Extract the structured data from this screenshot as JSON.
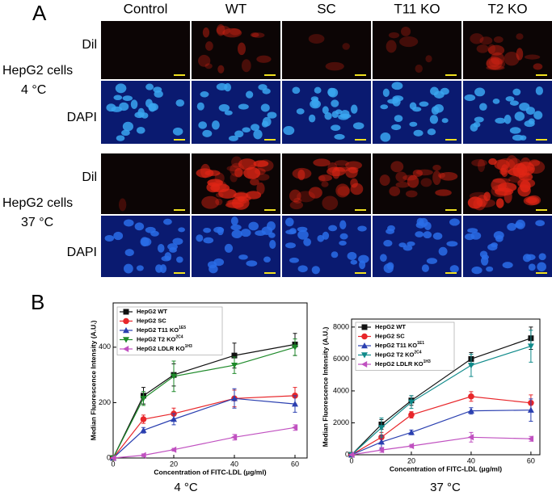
{
  "panel_a": {
    "label": "A",
    "columns": [
      "Control",
      "WT",
      "SC",
      "T11 KO",
      "T2 KO"
    ],
    "groups": [
      {
        "cell_line": "HepG2 cells",
        "temperature": "4 °C",
        "rows": [
          "Dil",
          "DAPI"
        ]
      },
      {
        "cell_line": "HepG2 cells",
        "temperature": "37 °C",
        "rows": [
          "Dil",
          "DAPI"
        ]
      }
    ]
  },
  "panel_b_label": "B",
  "chart_data": [
    {
      "type": "line",
      "caption": "4 °C",
      "x_label": "Concentration of FITC-LDL (μg/ml)",
      "y_label": "Median Fluorescence Intensity (A.U.)",
      "x": [
        0,
        10,
        20,
        40,
        60
      ],
      "xlim": [
        0,
        64
      ],
      "xticks": [
        0,
        20,
        40,
        60
      ],
      "ylim": [
        0,
        560
      ],
      "yticks": [
        0,
        200,
        400
      ],
      "series": [
        {
          "name": "HepG2 WT",
          "color": "#111111",
          "marker": "square",
          "values": [
            0,
            225,
            300,
            370,
            410
          ],
          "errors": [
            0,
            30,
            40,
            45,
            40
          ]
        },
        {
          "name": "HepG2 SC",
          "color": "#e8262a",
          "marker": "circle",
          "values": [
            0,
            140,
            160,
            215,
            225
          ],
          "errors": [
            0,
            15,
            20,
            30,
            30
          ]
        },
        {
          "name": "HepG2 T11 KO",
          "sup": "1E5",
          "color": "#2a3fb0",
          "marker": "triangle-up",
          "values": [
            0,
            100,
            140,
            215,
            195
          ],
          "errors": [
            0,
            10,
            20,
            35,
            30
          ]
        },
        {
          "name": "HepG2 T2 KO",
          "sup": "2C4",
          "color": "#1e8a2a",
          "marker": "triangle-down",
          "values": [
            0,
            215,
            295,
            335,
            400
          ],
          "errors": [
            0,
            25,
            55,
            30,
            30
          ]
        },
        {
          "name": "HepG2 LDLR KO",
          "sup": "1H3",
          "color": "#c050c0",
          "marker": "triangle-left",
          "values": [
            0,
            10,
            30,
            75,
            110
          ],
          "errors": [
            0,
            5,
            5,
            10,
            10
          ]
        }
      ]
    },
    {
      "type": "line",
      "caption": "37 °C",
      "x_label": "Concentration of FITC-LDL (μg/ml)",
      "y_label": "Median Fluorescence Intensity (A.U.)",
      "x": [
        0,
        10,
        20,
        40,
        60
      ],
      "xlim": [
        0,
        63
      ],
      "xticks": [
        0,
        20,
        40,
        60
      ],
      "ylim": [
        0,
        8500
      ],
      "yticks": [
        0,
        2000,
        4000,
        6000,
        8000
      ],
      "series": [
        {
          "name": "HepG2 WT",
          "color": "#111111",
          "marker": "square",
          "values": [
            0,
            1900,
            3400,
            6000,
            7300
          ],
          "errors": [
            0,
            300,
            300,
            400,
            700
          ]
        },
        {
          "name": "HepG2 SC",
          "color": "#e8262a",
          "marker": "circle",
          "values": [
            0,
            1100,
            2500,
            3650,
            3250
          ],
          "errors": [
            0,
            300,
            200,
            300,
            500
          ]
        },
        {
          "name": "HepG2 T11 KO",
          "sup": "1E1",
          "color": "#2a3fb0",
          "marker": "triangle-up",
          "values": [
            0,
            800,
            1400,
            2750,
            2800
          ],
          "errors": [
            0,
            400,
            150,
            200,
            700
          ]
        },
        {
          "name": "HepG2 T2 KO",
          "sup": "2C4",
          "color": "#0f8a8a",
          "marker": "triangle-down",
          "values": [
            0,
            1700,
            3300,
            5600,
            6800
          ],
          "errors": [
            0,
            600,
            400,
            700,
            1000
          ]
        },
        {
          "name": "HepG2 LDLR KO",
          "sup": "1H3",
          "color": "#c050c0",
          "marker": "triangle-left",
          "values": [
            0,
            300,
            550,
            1100,
            1000
          ],
          "errors": [
            0,
            150,
            100,
            300,
            150
          ]
        }
      ]
    }
  ]
}
